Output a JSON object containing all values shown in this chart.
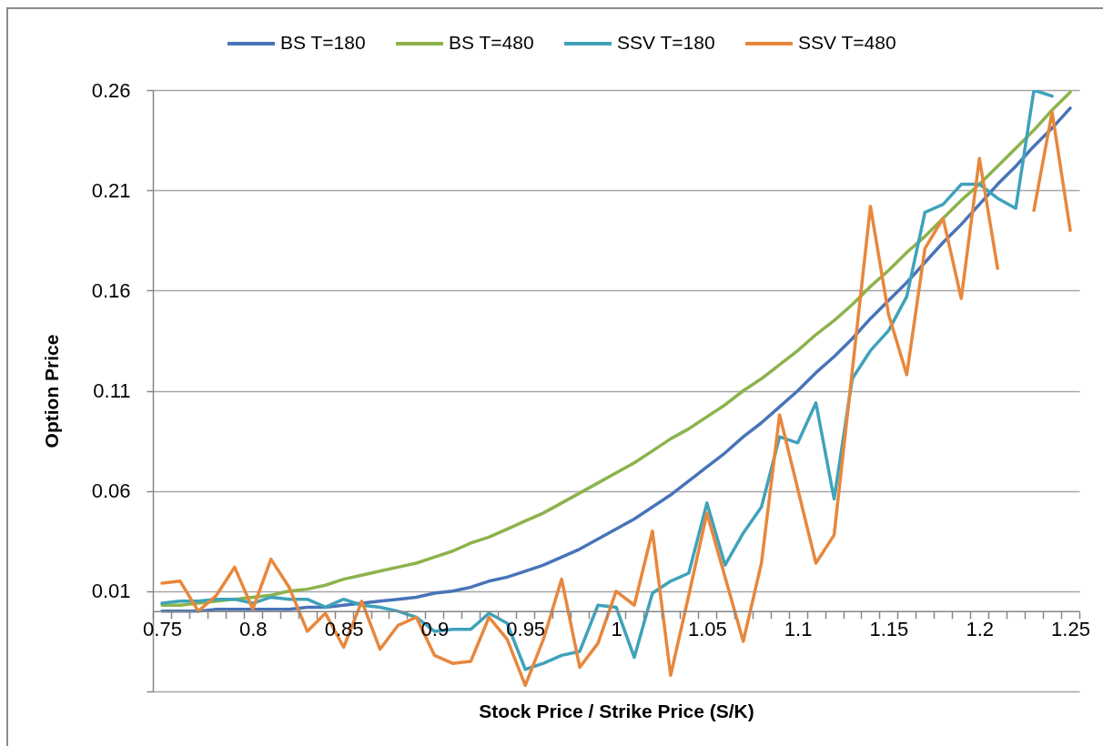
{
  "chart_data": {
    "type": "line",
    "categories": [
      "0.75",
      null,
      null,
      null,
      null,
      "0.8",
      null,
      null,
      null,
      null,
      "0.85",
      null,
      null,
      null,
      null,
      "0.9",
      null,
      null,
      null,
      null,
      "0.95",
      null,
      null,
      null,
      null,
      "1",
      null,
      null,
      null,
      null,
      "1.05",
      null,
      null,
      null,
      null,
      "1.1",
      null,
      null,
      null,
      null,
      "1.15",
      null,
      null,
      null,
      null,
      "1.2",
      null,
      null,
      null,
      null,
      "1.25"
    ],
    "series": [
      {
        "name": "BS T=180",
        "color": "#4874b8",
        "values": [
          0,
          0,
          0,
          0.001,
          0.001,
          0.001,
          0.001,
          0.001,
          0.002,
          0.002,
          0.003,
          0.004,
          0.005,
          0.006,
          0.007,
          0.009,
          0.01,
          0.012,
          0.015,
          0.017,
          0.02,
          0.023,
          0.027,
          0.031,
          0.036,
          0.041,
          0.046,
          0.052,
          0.058,
          0.065,
          0.072,
          0.079,
          0.087,
          0.094,
          0.102,
          0.11,
          0.119,
          0.127,
          0.136,
          0.146,
          0.155,
          0.164,
          0.174,
          0.184,
          0.193,
          0.203,
          0.213,
          0.222,
          0.232,
          0.241,
          0.251
        ]
      },
      {
        "name": "BS T=480",
        "color": "#8db24c",
        "values": [
          0.003,
          0.003,
          0.004,
          0.005,
          0.006,
          0.007,
          0.008,
          0.01,
          0.011,
          0.013,
          0.016,
          0.018,
          0.02,
          0.022,
          0.024,
          0.027,
          0.03,
          0.034,
          0.037,
          0.041,
          0.045,
          0.049,
          0.054,
          0.059,
          0.064,
          0.069,
          0.074,
          0.08,
          0.086,
          0.091,
          0.097,
          0.103,
          0.11,
          0.116,
          0.123,
          0.13,
          0.138,
          0.145,
          0.153,
          0.162,
          0.17,
          0.179,
          0.187,
          0.196,
          0.205,
          0.213,
          0.222,
          0.231,
          0.24,
          0.25,
          0.259
        ]
      },
      {
        "name": "SSV T=180",
        "color": "#3fa2ba",
        "values": [
          0.004,
          0.005,
          0.005,
          0.006,
          0.006,
          0.004,
          0.007,
          0.006,
          0.006,
          0.002,
          0.006,
          0.003,
          0.002,
          0.0,
          -0.003,
          -0.01,
          -0.009,
          -0.009,
          -0.001,
          -0.006,
          -0.029,
          -0.026,
          -0.022,
          -0.02,
          0.003,
          0.002,
          -0.023,
          0.009,
          0.015,
          0.019,
          0.054,
          0.023,
          0.039,
          0.052,
          0.087,
          0.084,
          0.104,
          0.056,
          0.116,
          0.13,
          0.14,
          0.157,
          0.199,
          0.203,
          0.213,
          0.213,
          0.206,
          0.201,
          0.26,
          0.257,
          null
        ]
      },
      {
        "name": "SSV T=480",
        "color": "#e8873c",
        "values": [
          0.014,
          0.015,
          0.0,
          0.008,
          0.022,
          0.001,
          0.026,
          0.012,
          -0.01,
          -0.001,
          -0.018,
          0.005,
          -0.019,
          -0.007,
          -0.003,
          -0.022,
          -0.026,
          -0.025,
          -0.003,
          -0.014,
          -0.037,
          -0.014,
          0.016,
          -0.028,
          -0.016,
          0.01,
          0.003,
          0.04,
          -0.032,
          0.008,
          0.049,
          0.017,
          -0.015,
          0.024,
          0.098,
          0.061,
          0.024,
          0.038,
          0.12,
          0.202,
          0.148,
          0.118,
          0.181,
          0.196,
          0.156,
          0.226,
          0.171,
          null,
          0.2,
          0.249,
          0.19
        ]
      }
    ],
    "xlabel": "Stock Price / Strike Price  (S/K)",
    "ylabel": "Option Price",
    "ylim": [
      -0.04,
      0.26
    ],
    "yticks": [
      {
        "value": -0.04,
        "label": null
      },
      0.01,
      0.06,
      0.11,
      0.16,
      0.21,
      0.26
    ],
    "grid": "y",
    "legend": "top"
  }
}
